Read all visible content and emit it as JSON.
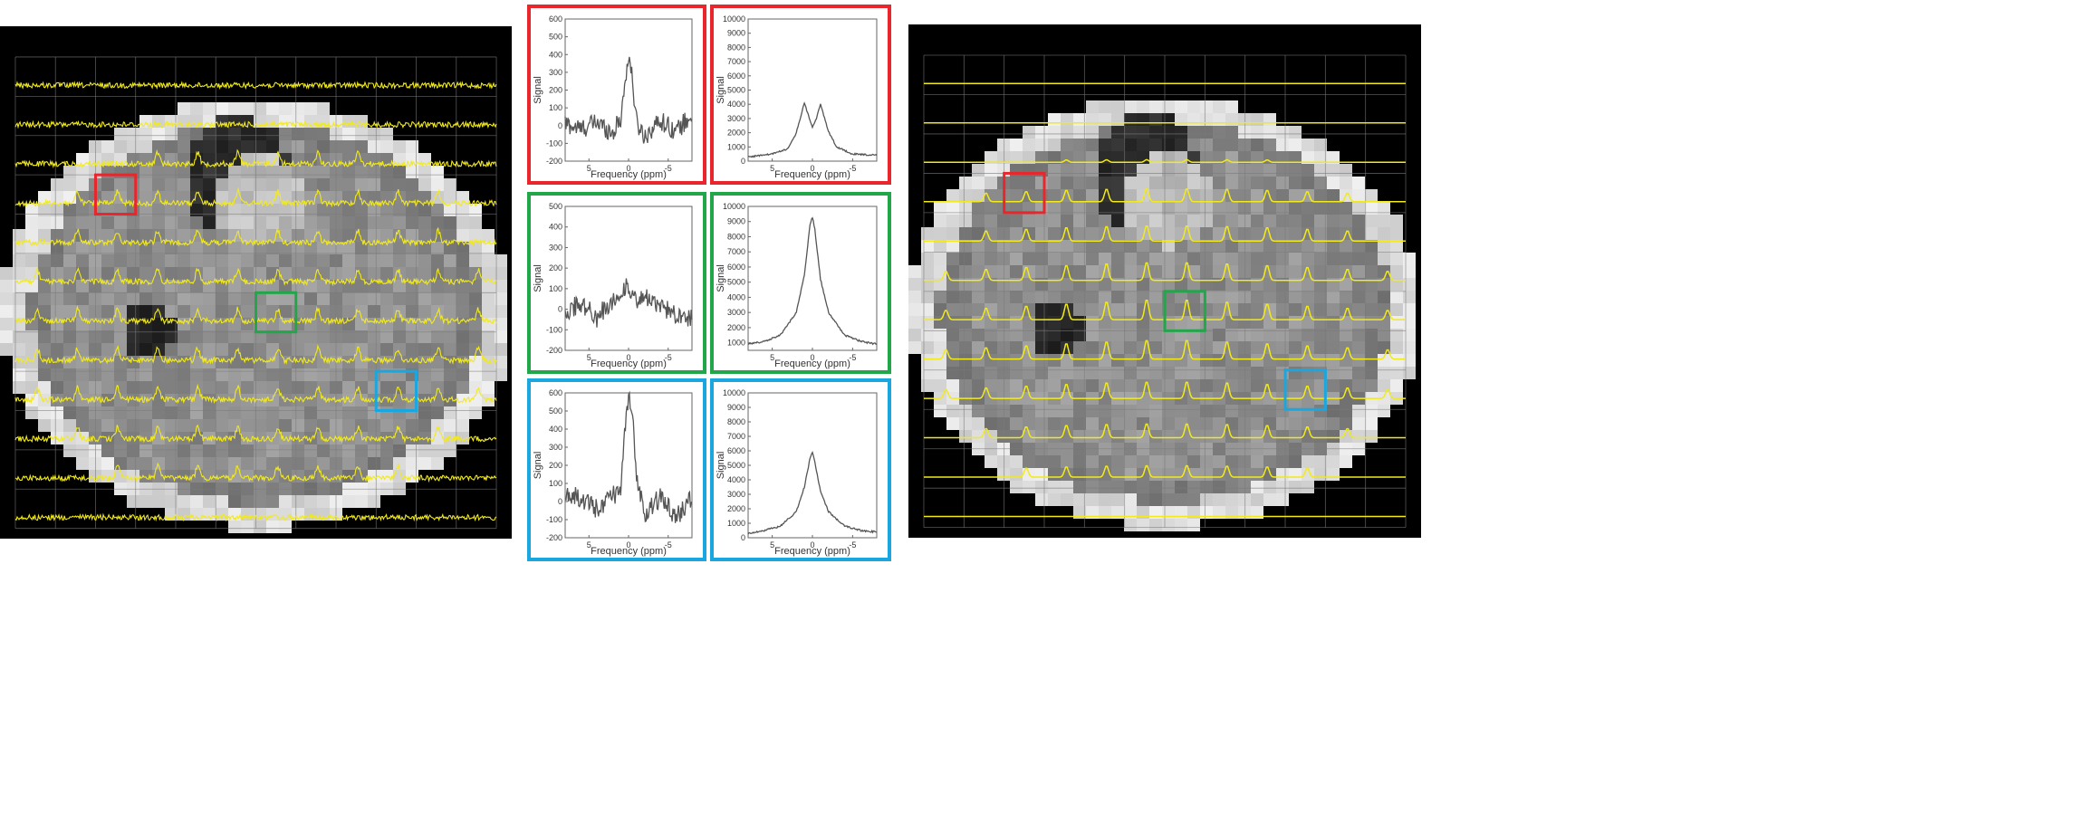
{
  "colors": {
    "box_red": "#e8262b",
    "box_green": "#22a64a",
    "box_blue": "#1aa7e0",
    "spectrum_overlay": "#f2ea1a",
    "grid": "#7a7a7a"
  },
  "mri_left": {
    "grid_cols": 12,
    "grid_rows": 12,
    "trace_style": "noisy"
  },
  "mri_right": {
    "grid_cols": 12,
    "grid_rows": 12,
    "trace_style": "smooth"
  },
  "panels": [
    {
      "id": "red-left",
      "box": "red",
      "peak_shape": "narrow",
      "ylabel": "Signal",
      "xlabel": "Frequency (ppm)",
      "y_ticks": [
        "600",
        "500",
        "400",
        "300",
        "200",
        "100",
        "0",
        "-100",
        "-200"
      ],
      "ylim": [
        -200,
        600
      ],
      "x_ticks": [
        "5",
        "0",
        "-5"
      ],
      "xlim": [
        8,
        -8
      ],
      "chart_data": {
        "type": "line",
        "points": [
          [
            8,
            10
          ],
          [
            6,
            -20
          ],
          [
            4,
            20
          ],
          [
            2,
            -40
          ],
          [
            1,
            40
          ],
          [
            0.5,
            220
          ],
          [
            0,
            400
          ],
          [
            -0.5,
            250
          ],
          [
            -1,
            20
          ],
          [
            -2,
            -60
          ],
          [
            -4,
            30
          ],
          [
            -6,
            -30
          ],
          [
            -8,
            60
          ]
        ]
      }
    },
    {
      "id": "red-right",
      "box": "red",
      "peak_shape": "doublet",
      "ylabel": "Signal",
      "xlabel": "Frequency (ppm)",
      "y_ticks": [
        "10000",
        "9000",
        "8000",
        "7000",
        "6000",
        "5000",
        "4000",
        "3000",
        "2000",
        "1000",
        "0"
      ],
      "ylim": [
        0,
        10000
      ],
      "x_ticks": [
        "5",
        "0",
        "-5"
      ],
      "xlim": [
        8,
        -8
      ],
      "chart_data": {
        "type": "line",
        "points": [
          [
            8,
            300
          ],
          [
            5,
            500
          ],
          [
            3,
            900
          ],
          [
            2,
            2000
          ],
          [
            1,
            4100
          ],
          [
            0.5,
            3200
          ],
          [
            0,
            2400
          ],
          [
            -0.5,
            3000
          ],
          [
            -1,
            4000
          ],
          [
            -2,
            2100
          ],
          [
            -3,
            1000
          ],
          [
            -5,
            500
          ],
          [
            -8,
            400
          ]
        ]
      }
    },
    {
      "id": "green-left",
      "box": "green",
      "peak_shape": "noise",
      "ylabel": "Signal",
      "xlabel": "Frequency (ppm)",
      "y_ticks": [
        "500",
        "400",
        "300",
        "200",
        "100",
        "0",
        "-100",
        "-200"
      ],
      "ylim": [
        -200,
        500
      ],
      "x_ticks": [
        "5",
        "0",
        "-5"
      ],
      "xlim": [
        8,
        -8
      ],
      "chart_data": {
        "type": "line",
        "points": [
          [
            8,
            -10
          ],
          [
            6,
            30
          ],
          [
            4,
            -40
          ],
          [
            2,
            40
          ],
          [
            0,
            120
          ],
          [
            -1,
            20
          ],
          [
            -2,
            60
          ],
          [
            -4,
            10
          ],
          [
            -6,
            -20
          ],
          [
            -8,
            -40
          ]
        ]
      }
    },
    {
      "id": "green-right",
      "box": "green",
      "peak_shape": "single",
      "ylabel": "Signal",
      "xlabel": "Frequency (ppm)",
      "y_ticks": [
        "10000",
        "9000",
        "8000",
        "7000",
        "6000",
        "5000",
        "4000",
        "3000",
        "2000",
        "1000"
      ],
      "ylim": [
        500,
        10000
      ],
      "x_ticks": [
        "5",
        "0",
        "-5"
      ],
      "xlim": [
        8,
        -8
      ],
      "chart_data": {
        "type": "line",
        "points": [
          [
            8,
            900
          ],
          [
            6,
            1100
          ],
          [
            4,
            1500
          ],
          [
            2,
            3000
          ],
          [
            1,
            5500
          ],
          [
            0.3,
            8800
          ],
          [
            0,
            9300
          ],
          [
            -0.3,
            8500
          ],
          [
            -1,
            5200
          ],
          [
            -2,
            3000
          ],
          [
            -4,
            1500
          ],
          [
            -6,
            1100
          ],
          [
            -8,
            900
          ]
        ]
      }
    },
    {
      "id": "blue-left",
      "box": "blue",
      "peak_shape": "narrow",
      "ylabel": "Signal",
      "xlabel": "Frequency (ppm)",
      "y_ticks": [
        "600",
        "500",
        "400",
        "300",
        "200",
        "100",
        "0",
        "-100",
        "-200"
      ],
      "ylim": [
        -200,
        600
      ],
      "x_ticks": [
        "5",
        "0",
        "-5"
      ],
      "xlim": [
        8,
        -8
      ],
      "chart_data": {
        "type": "line",
        "points": [
          [
            8,
            40
          ],
          [
            6,
            20
          ],
          [
            4,
            -40
          ],
          [
            2,
            30
          ],
          [
            1,
            60
          ],
          [
            0.5,
            350
          ],
          [
            0,
            580
          ],
          [
            -0.5,
            450
          ],
          [
            -1,
            150
          ],
          [
            -2,
            -60
          ],
          [
            -4,
            20
          ],
          [
            -6,
            -90
          ],
          [
            -8,
            20
          ]
        ]
      }
    },
    {
      "id": "blue-right",
      "box": "blue",
      "peak_shape": "single",
      "ylabel": "Signal",
      "xlabel": "Frequency (ppm)",
      "y_ticks": [
        "10000",
        "9000",
        "8000",
        "7000",
        "6000",
        "5000",
        "4000",
        "3000",
        "2000",
        "1000",
        "0"
      ],
      "ylim": [
        0,
        10000
      ],
      "x_ticks": [
        "5",
        "0",
        "-5"
      ],
      "xlim": [
        8,
        -8
      ],
      "chart_data": {
        "type": "line",
        "points": [
          [
            8,
            300
          ],
          [
            6,
            500
          ],
          [
            4,
            800
          ],
          [
            2,
            1800
          ],
          [
            1,
            3500
          ],
          [
            0.3,
            5500
          ],
          [
            0,
            5900
          ],
          [
            -0.3,
            5200
          ],
          [
            -1,
            3200
          ],
          [
            -2,
            1800
          ],
          [
            -4,
            800
          ],
          [
            -6,
            500
          ],
          [
            -8,
            400
          ]
        ]
      }
    }
  ]
}
